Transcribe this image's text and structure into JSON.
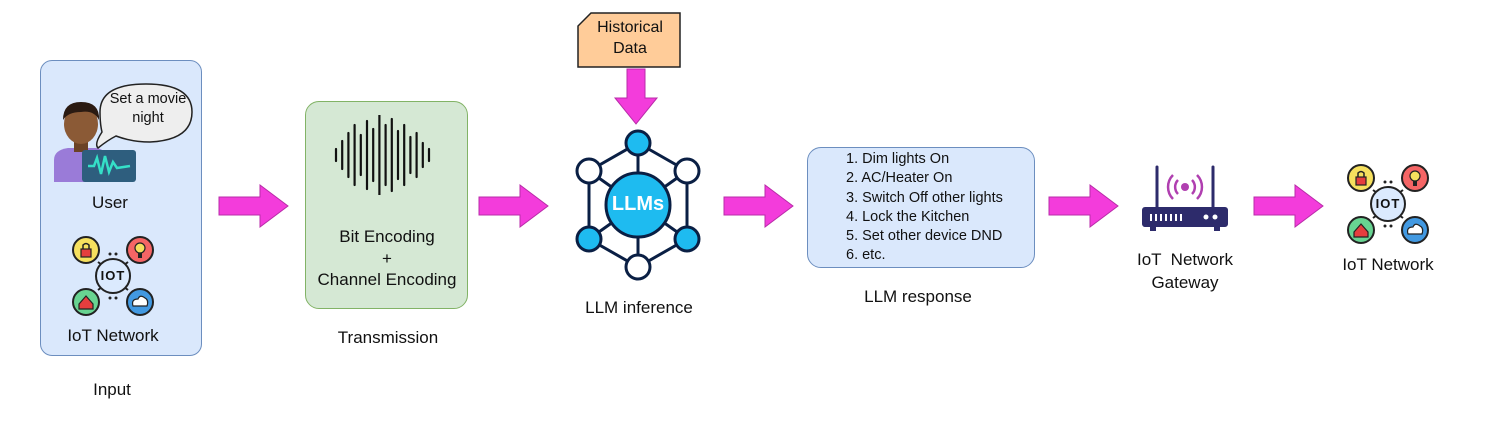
{
  "input": {
    "speech_bubble": [
      "Set a movie",
      "night"
    ],
    "user_label": "User",
    "iot_label": "IoT Network",
    "caption": "Input"
  },
  "transmission": {
    "line1": "Bit Encoding",
    "line2": "+",
    "line3": "Channel Encoding",
    "caption": "Transmission"
  },
  "historical_data": [
    "Historical",
    "Data"
  ],
  "llm": {
    "core_label": "LLMs",
    "caption": "LLM inference"
  },
  "response": {
    "items": [
      "1. Dim lights On",
      "2. AC/Heater On",
      "3. Switch Off other lights",
      "4. Lock the Kitchen",
      "5. Set other device DND",
      "6. etc."
    ],
    "caption": "LLM response"
  },
  "gateway": {
    "line1": "IoT  Network",
    "line2": "Gateway"
  },
  "output": {
    "label": "IoT Network",
    "iot_text": "IOT"
  },
  "colors": {
    "arrow": "#f33cdb",
    "arrow_stroke": "#b82ca8",
    "blue_box": "#dae8fc",
    "green_box": "#d5e8d4",
    "note": "#ffcc99",
    "llm_node": "#1ebbf0"
  }
}
